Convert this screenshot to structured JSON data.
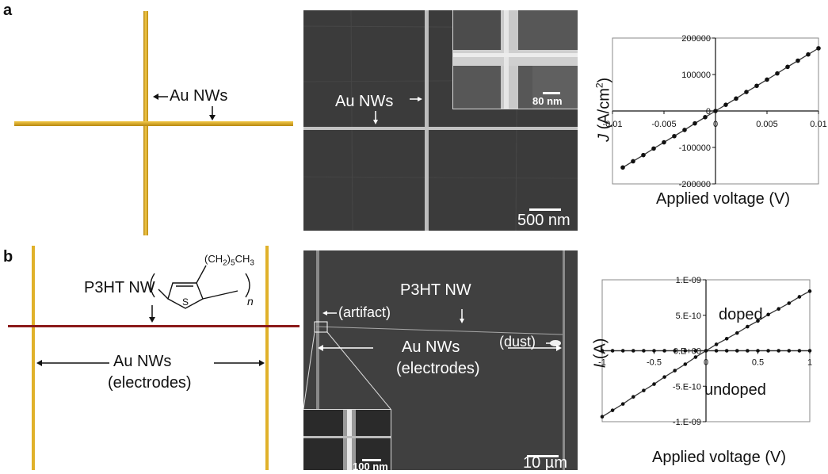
{
  "panels": {
    "a": {
      "letter": "a",
      "schematic": {
        "au_label": "Au NWs"
      },
      "sem": {
        "au_label": "Au NWs",
        "scale_main": "500 nm",
        "scale_inset": "80 nm"
      }
    },
    "b": {
      "letter": "b",
      "schematic": {
        "p3ht_label": "P3HT NW",
        "substituent": "(CH2)5CH3",
        "ring_atom": "S",
        "repeat_n": "n",
        "electrode_label_1": "Au NWs",
        "electrode_label_2": "(electrodes)"
      },
      "sem": {
        "p3ht_label": "P3HT NW",
        "artifact_label": "(artifact)",
        "dust_label": "(dust)",
        "electrode_label_1": "Au NWs",
        "electrode_label_2": "(electrodes)",
        "scale_main": "10 µm",
        "scale_inset": "100 nm"
      }
    }
  },
  "colors": {
    "gold": "#e0b12a",
    "polymer": "#8b1a1a",
    "sem_bg": "#3a3a3a"
  },
  "chart_data": [
    {
      "type": "line",
      "xlabel": "Applied voltage (V)",
      "ylabel": "J (A/cm²)",
      "xlim": [
        -0.01,
        0.01
      ],
      "ylim": [
        -200000,
        200000
      ],
      "x_ticks": [
        "-0.01",
        "-0.005",
        "0",
        "0.005",
        "0.01"
      ],
      "y_ticks": [
        "-200000",
        "-100000",
        "0",
        "100000",
        "200000"
      ],
      "series": [
        {
          "name": "",
          "x": [
            -0.009,
            -0.008,
            -0.007,
            -0.006,
            -0.005,
            -0.004,
            -0.003,
            -0.002,
            -0.001,
            0,
            0.001,
            0.002,
            0.003,
            0.004,
            0.005,
            0.006,
            0.007,
            0.008,
            0.009,
            0.01
          ],
          "y": [
            -155000,
            -138000,
            -121000,
            -103000,
            -86000,
            -69000,
            -52000,
            -34000,
            -17000,
            0,
            17000,
            34000,
            52000,
            69000,
            86000,
            103000,
            121000,
            138000,
            155000,
            172000
          ]
        }
      ]
    },
    {
      "type": "line",
      "xlabel": "Applied voltage (V)",
      "ylabel": "I (A)",
      "xlim": [
        -1,
        1
      ],
      "ylim": [
        -1e-09,
        1e-09
      ],
      "x_ticks": [
        "-1",
        "-0.5",
        "0",
        "0.5",
        "1"
      ],
      "y_ticks": [
        "1.E-09",
        "5.E-10",
        "0.E+00",
        "-5.E-10",
        "-1.E-09"
      ],
      "annotations": [
        "doped",
        "undoped"
      ],
      "series": [
        {
          "name": "doped",
          "x": [
            -1,
            -0.9,
            -0.8,
            -0.7,
            -0.6,
            -0.5,
            -0.4,
            -0.3,
            -0.2,
            -0.1,
            0,
            0.1,
            0.2,
            0.3,
            0.4,
            0.5,
            0.6,
            0.7,
            0.8,
            0.9,
            1
          ],
          "y": [
            -9.3e-10,
            -8.4e-10,
            -7.5e-10,
            -6.5e-10,
            -5.6e-10,
            -4.7e-10,
            -3.7e-10,
            -2.8e-10,
            -1.9e-10,
            -9e-11,
            0,
            9e-11,
            1.7e-10,
            2.5e-10,
            3.4e-10,
            4.2e-10,
            5.1e-10,
            5.9e-10,
            6.7e-10,
            7.6e-10,
            8.4e-10
          ]
        },
        {
          "name": "undoped",
          "x": [
            -1,
            -0.9,
            -0.8,
            -0.7,
            -0.6,
            -0.5,
            -0.4,
            -0.3,
            -0.2,
            -0.1,
            0,
            0.1,
            0.2,
            0.3,
            0.4,
            0.5,
            0.6,
            0.7,
            0.8,
            0.9,
            1
          ],
          "y": [
            0,
            0,
            0,
            0,
            0,
            0,
            0,
            0,
            0,
            0,
            0,
            0,
            0,
            0,
            0,
            0,
            0,
            0,
            0,
            0,
            0
          ]
        }
      ]
    }
  ]
}
